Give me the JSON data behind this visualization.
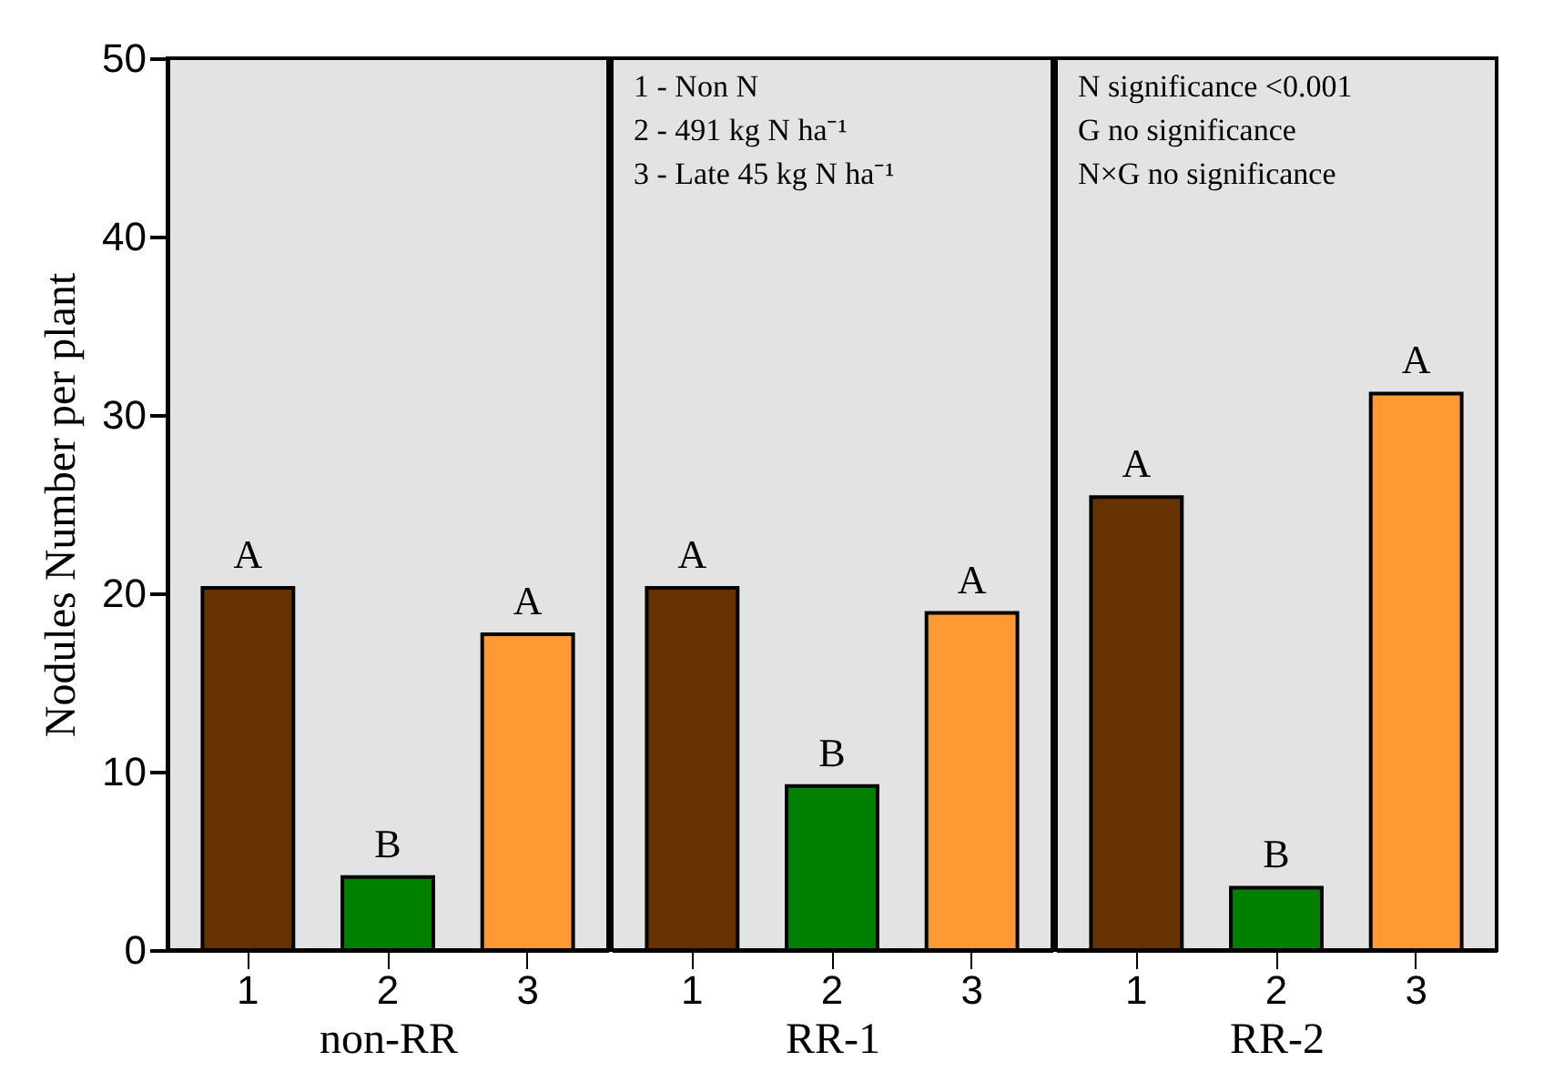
{
  "chart_data": [
    {
      "type": "bar",
      "xlabel": "non-RR",
      "ylabel": "Nodules Number per plant",
      "categories": [
        "1",
        "2",
        "3"
      ],
      "values": [
        20.3,
        4.1,
        17.7
      ],
      "colors": [
        "#663300",
        "#008000",
        "#ff9933"
      ],
      "value_labels": [
        "A",
        "B",
        "A"
      ],
      "ylim": [
        0,
        50
      ],
      "yticks": [
        0,
        10,
        20,
        30,
        40,
        50
      ]
    },
    {
      "type": "bar",
      "xlabel": "RR-1",
      "categories": [
        "1",
        "2",
        "3"
      ],
      "values": [
        20.3,
        9.2,
        18.9
      ],
      "colors": [
        "#663300",
        "#008000",
        "#ff9933"
      ],
      "value_labels": [
        "A",
        "B",
        "A"
      ],
      "ylim": [
        0,
        50
      ],
      "yticks": [
        0,
        10,
        20,
        30,
        40,
        50
      ],
      "tick_labels": "x",
      "annotations": [
        "1 - Non N",
        "2 - 491 kg N ha⁻¹",
        "3 - Late 45 kg N ha⁻¹"
      ]
    },
    {
      "type": "bar",
      "xlabel": "RR-2",
      "categories": [
        "1",
        "2",
        "3"
      ],
      "values": [
        25.4,
        3.5,
        31.2
      ],
      "colors": [
        "#663300",
        "#008000",
        "#ff9933"
      ],
      "value_labels": [
        "A",
        "B",
        "A"
      ],
      "ylim": [
        0,
        50
      ],
      "yticks": [
        0,
        10,
        20,
        30,
        40,
        50
      ],
      "tick_labels": "x",
      "annotations": [
        "N  significance <0.001",
        "G  no significance",
        "N×G  no significance"
      ]
    }
  ]
}
